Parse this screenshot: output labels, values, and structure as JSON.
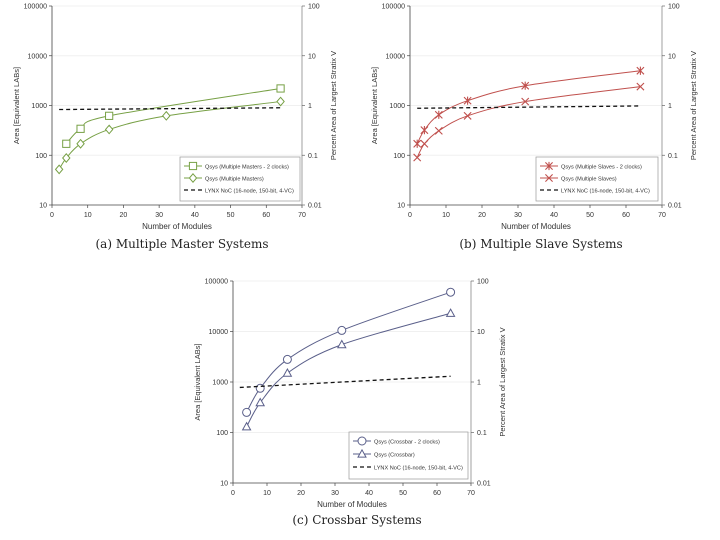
{
  "chart_data": [
    {
      "type": "line",
      "caption": "(a) Multiple Master Systems",
      "xlabel": "Number of Modules",
      "ylabel": "Area [Equivalent LABs]",
      "ylabel_right": "Percent Area of Largest Stratix V",
      "xlim": [
        0,
        70
      ],
      "ylim": [
        10,
        100000
      ],
      "yscale": "log",
      "xticks": [
        "0",
        "10",
        "20",
        "30",
        "40",
        "50",
        "60",
        "70"
      ],
      "yticks": [
        "10",
        "100",
        "1000",
        "10000",
        "100000"
      ],
      "yticks_right": [
        "0.01",
        "0.1",
        "1",
        "10",
        "100"
      ],
      "legend_position": "bottom-right",
      "series": [
        {
          "name": "Qsys (Multiple Masters - 2 clocks)",
          "marker": "square",
          "color": "#77a045",
          "x": [
            4,
            8,
            16,
            64
          ],
          "y": [
            170,
            340,
            620,
            2200
          ]
        },
        {
          "name": "Qsys (Multiple Masters)",
          "marker": "diamond",
          "color": "#77a045",
          "x": [
            2,
            4,
            8,
            16,
            32,
            64
          ],
          "y": [
            52,
            88,
            170,
            330,
            620,
            1200
          ]
        },
        {
          "name": "LYNX NoC (16-node, 150-bit, 4-VC)",
          "marker": "none",
          "dashed": true,
          "color": "#111111",
          "x": [
            2,
            64
          ],
          "y": [
            830,
            900
          ]
        }
      ]
    },
    {
      "type": "line",
      "caption": "(b) Multiple Slave Systems",
      "xlabel": "Number of Modules",
      "ylabel": "Area [Equivalent LABs]",
      "ylabel_right": "Percent Area of Largest Stratix V",
      "xlim": [
        0,
        70
      ],
      "ylim": [
        10,
        100000
      ],
      "yscale": "log",
      "xticks": [
        "0",
        "10",
        "20",
        "30",
        "40",
        "50",
        "60",
        "70"
      ],
      "yticks": [
        "10",
        "100",
        "1000",
        "10000",
        "100000"
      ],
      "yticks_right": [
        "0.01",
        "0.1",
        "1",
        "10",
        "100"
      ],
      "legend_position": "bottom-right",
      "series": [
        {
          "name": "Qsys (Multiple Slaves - 2 clocks)",
          "marker": "star",
          "color": "#c0504d",
          "x": [
            2,
            4,
            8,
            16,
            32,
            64
          ],
          "y": [
            170,
            320,
            650,
            1250,
            2500,
            5000
          ]
        },
        {
          "name": "Qsys (Multiple Slaves)",
          "marker": "x",
          "color": "#c0504d",
          "x": [
            2,
            4,
            8,
            16,
            32,
            64
          ],
          "y": [
            90,
            170,
            310,
            620,
            1200,
            2400
          ]
        },
        {
          "name": "LYNX NoC (16-node, 150-bit, 4-VC)",
          "marker": "none",
          "dashed": true,
          "color": "#111111",
          "x": [
            2,
            64
          ],
          "y": [
            880,
            980
          ]
        }
      ]
    },
    {
      "type": "line",
      "caption": "(c) Crossbar Systems",
      "xlabel": "Number of Modules",
      "ylabel": "Area [Equivalent LABs]",
      "ylabel_right": "Percent Area of Largest Stratix V",
      "xlim": [
        0,
        70
      ],
      "ylim": [
        10,
        100000
      ],
      "yscale": "log",
      "xticks": [
        "0",
        "10",
        "20",
        "30",
        "40",
        "50",
        "60",
        "70"
      ],
      "yticks": [
        "10",
        "100",
        "1000",
        "10000",
        "100000"
      ],
      "yticks_right": [
        "0.01",
        "0.1",
        "1",
        "10",
        "100"
      ],
      "legend_position": "bottom-right",
      "series": [
        {
          "name": "Qsys (Crossbar - 2 clocks)",
          "marker": "circle",
          "color": "#5a5f8a",
          "x": [
            4,
            8,
            16,
            32,
            64
          ],
          "y": [
            250,
            750,
            2800,
            10500,
            60000
          ]
        },
        {
          "name": "Qsys (Crossbar)",
          "marker": "triangle",
          "color": "#5a5f8a",
          "x": [
            4,
            8,
            16,
            32,
            64
          ],
          "y": [
            130,
            390,
            1500,
            5500,
            23000
          ]
        },
        {
          "name": "LYNX NoC (16-node, 150-bit, 4-VC)",
          "marker": "none",
          "dashed": true,
          "color": "#111111",
          "x": [
            2,
            64
          ],
          "y": [
            780,
            1300
          ]
        }
      ]
    }
  ]
}
